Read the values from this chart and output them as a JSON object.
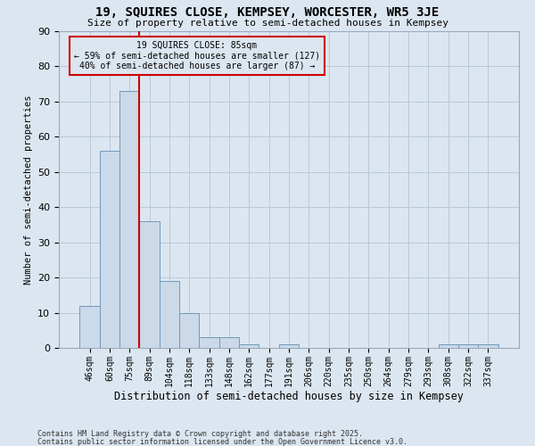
{
  "title1": "19, SQUIRES CLOSE, KEMPSEY, WORCESTER, WR5 3JE",
  "title2": "Size of property relative to semi-detached houses in Kempsey",
  "xlabel": "Distribution of semi-detached houses by size in Kempsey",
  "ylabel": "Number of semi-detached properties",
  "categories": [
    "46sqm",
    "60sqm",
    "75sqm",
    "89sqm",
    "104sqm",
    "118sqm",
    "133sqm",
    "148sqm",
    "162sqm",
    "177sqm",
    "191sqm",
    "206sqm",
    "220sqm",
    "235sqm",
    "250sqm",
    "264sqm",
    "279sqm",
    "293sqm",
    "308sqm",
    "322sqm",
    "337sqm"
  ],
  "values": [
    12,
    56,
    73,
    36,
    19,
    10,
    3,
    3,
    1,
    0,
    1,
    0,
    0,
    0,
    0,
    0,
    0,
    0,
    1,
    1,
    1
  ],
  "bar_color": "#ccd9e8",
  "bar_edge_color": "#7099bb",
  "vline_x": 2.5,
  "vline_color": "#cc0000",
  "annotation_title": "19 SQUIRES CLOSE: 85sqm",
  "annotation_line2": "← 59% of semi-detached houses are smaller (127)",
  "annotation_line3": "40% of semi-detached houses are larger (87) →",
  "annotation_box_color": "#cc0000",
  "ylim": [
    0,
    90
  ],
  "yticks": [
    0,
    10,
    20,
    30,
    40,
    50,
    60,
    70,
    80,
    90
  ],
  "grid_color": "#b8c8dc",
  "bg_color": "#dce6f0",
  "footer1": "Contains HM Land Registry data © Crown copyright and database right 2025.",
  "footer2": "Contains public sector information licensed under the Open Government Licence v3.0."
}
